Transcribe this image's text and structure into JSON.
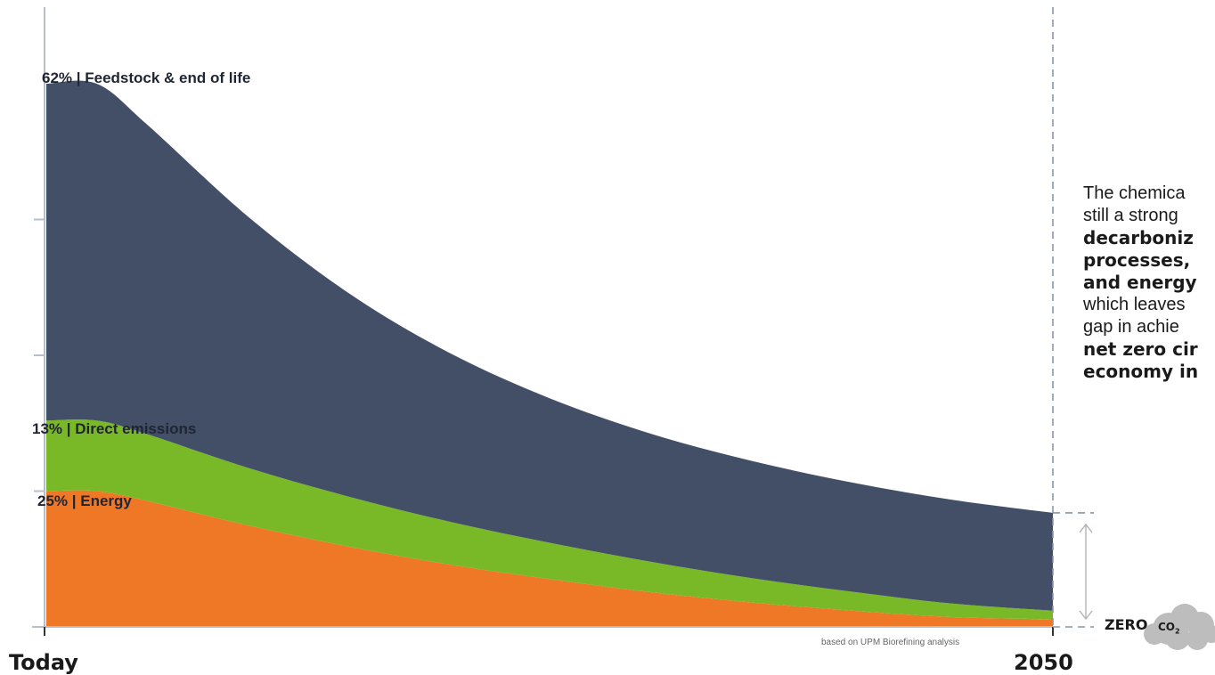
{
  "chart_data": {
    "type": "area",
    "stacked": true,
    "x_labels": [
      "Today",
      "2050"
    ],
    "series": [
      {
        "name": "Energy",
        "label": "25% | Energy",
        "share_today": 25,
        "color": "#ef7826",
        "points": [
          [
            0,
            25
          ],
          [
            0.05,
            25
          ],
          [
            0.1,
            23.2
          ],
          [
            0.2,
            18.7
          ],
          [
            0.3,
            14.8
          ],
          [
            0.4,
            11.5
          ],
          [
            0.5,
            8.8
          ],
          [
            0.6,
            6.4
          ],
          [
            0.7,
            4.5
          ],
          [
            0.8,
            3
          ],
          [
            0.9,
            1.8
          ],
          [
            1,
            1.4
          ]
        ]
      },
      {
        "name": "Direct emissions",
        "label": "13% | Direct emissions",
        "share_today": 13,
        "color": "#79b927",
        "points": [
          [
            0,
            13
          ],
          [
            0.05,
            13
          ],
          [
            0.1,
            12.3
          ],
          [
            0.2,
            10.6
          ],
          [
            0.3,
            9.2
          ],
          [
            0.4,
            7.9
          ],
          [
            0.5,
            6.7
          ],
          [
            0.6,
            5.6
          ],
          [
            0.7,
            4.5
          ],
          [
            0.8,
            3.5
          ],
          [
            0.9,
            2.5
          ],
          [
            1,
            1.6
          ]
        ]
      },
      {
        "name": "Feedstock & end of life",
        "label": "62% | Feedstock & end of life",
        "share_today": 62,
        "color": "#434f66",
        "points": [
          [
            0,
            62
          ],
          [
            0.05,
            62
          ],
          [
            0.1,
            57
          ],
          [
            0.2,
            46.3
          ],
          [
            0.3,
            37.5
          ],
          [
            0.4,
            31.1
          ],
          [
            0.5,
            26.6
          ],
          [
            0.6,
            23.6
          ],
          [
            0.7,
            21.6
          ],
          [
            0.8,
            20.1
          ],
          [
            0.9,
            19.1
          ],
          [
            1,
            18
          ]
        ]
      }
    ],
    "ylim": [
      0,
      100
    ],
    "target_label": "ZERO",
    "target_unit": "CO",
    "target_subscript": "2",
    "source_note": "based on UPM Biorefining analysis",
    "colors": {
      "axis": "#b8bfcc",
      "gap_arrow": "#b3b3b3",
      "cloud": "#bdbdbd"
    }
  },
  "note": {
    "line1": "The chemica",
    "line2": "still a strong",
    "line3": "decarboniz",
    "line4": "processes,",
    "line5": "and energy",
    "line6": "which leaves",
    "line7": "gap in achie",
    "line8": "net zero cir",
    "line9": "economy in"
  }
}
